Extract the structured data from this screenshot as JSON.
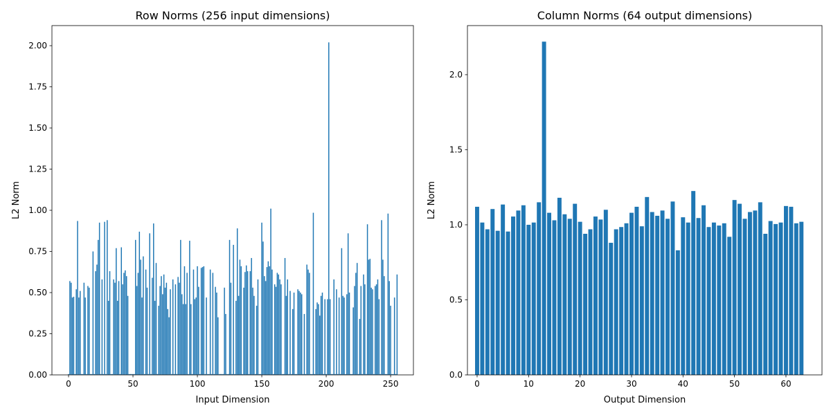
{
  "chart_data": [
    {
      "type": "bar",
      "title": "Row Norms (256 input dimensions)",
      "xlabel": "Input Dimension",
      "ylabel": "L2 Norm",
      "color": "#1f77b4",
      "x": [
        0,
        1,
        2,
        3,
        4,
        5,
        6,
        7,
        8,
        9,
        10,
        11,
        12,
        13,
        14,
        15,
        16,
        17,
        18,
        19,
        20,
        21,
        22,
        23,
        24,
        25,
        26,
        27,
        28,
        29,
        30,
        31,
        32,
        33,
        34,
        35,
        36,
        37,
        38,
        39,
        40,
        41,
        42,
        43,
        44,
        45,
        46,
        47,
        48,
        49,
        50,
        51,
        52,
        53,
        54,
        55,
        56,
        57,
        58,
        59,
        60,
        61,
        62,
        63,
        64,
        65,
        66,
        67,
        68,
        69,
        70,
        71,
        72,
        73,
        74,
        75,
        76,
        77,
        78,
        79,
        80,
        81,
        82,
        83,
        84,
        85,
        86,
        87,
        88,
        89,
        90,
        91,
        92,
        93,
        94,
        95,
        96,
        97,
        98,
        99,
        100,
        101,
        102,
        103,
        104,
        105,
        106,
        107,
        108,
        109,
        110,
        111,
        112,
        113,
        114,
        115,
        116,
        117,
        118,
        119,
        120,
        121,
        122,
        123,
        124,
        125,
        126,
        127,
        128,
        129,
        130,
        131,
        132,
        133,
        134,
        135,
        136,
        137,
        138,
        139,
        140,
        141,
        142,
        143,
        144,
        145,
        146,
        147,
        148,
        149,
        150,
        151,
        152,
        153,
        154,
        155,
        156,
        157,
        158,
        159,
        160,
        161,
        162,
        163,
        164,
        165,
        166,
        167,
        168,
        169,
        170,
        171,
        172,
        173,
        174,
        175,
        176,
        177,
        178,
        179,
        180,
        181,
        182,
        183,
        184,
        185,
        186,
        187,
        188,
        189,
        190,
        191,
        192,
        193,
        194,
        195,
        196,
        197,
        198,
        199,
        200,
        201,
        202,
        203,
        204,
        205,
        206,
        207,
        208,
        209,
        210,
        211,
        212,
        213,
        214,
        215,
        216,
        217,
        218,
        219,
        220,
        221,
        222,
        223,
        224,
        225,
        226,
        227,
        228,
        229,
        230,
        231,
        232,
        233,
        234,
        235,
        236,
        237,
        238,
        239,
        240,
        241,
        242,
        243,
        244,
        245,
        246,
        247,
        248,
        249,
        250,
        251,
        252,
        253,
        254,
        255
      ],
      "values": [
        0.005,
        0.57,
        0.56,
        0.47,
        0.475,
        0.005,
        0.52,
        0.935,
        0.47,
        0.51,
        0.005,
        0.005,
        0.56,
        0.47,
        0.005,
        0.54,
        0.53,
        0.005,
        0.005,
        0.75,
        0.005,
        0.63,
        0.67,
        0.82,
        0.925,
        0.005,
        0.58,
        0.005,
        0.93,
        0.005,
        0.94,
        0.45,
        0.63,
        0.005,
        0.005,
        0.58,
        0.56,
        0.77,
        0.45,
        0.57,
        0.005,
        0.775,
        0.55,
        0.62,
        0.635,
        0.6,
        0.48,
        0.005,
        0.005,
        0.005,
        0.005,
        0.005,
        0.82,
        0.54,
        0.62,
        0.87,
        0.7,
        0.47,
        0.72,
        0.005,
        0.64,
        0.53,
        0.005,
        0.86,
        0.005,
        0.59,
        0.92,
        0.45,
        0.68,
        0.005,
        0.42,
        0.54,
        0.6,
        0.49,
        0.61,
        0.53,
        0.56,
        0.4,
        0.35,
        0.52,
        0.005,
        0.58,
        0.005,
        0.55,
        0.005,
        0.595,
        0.56,
        0.82,
        0.49,
        0.43,
        0.66,
        0.43,
        0.62,
        0.005,
        0.815,
        0.43,
        0.005,
        0.64,
        0.46,
        0.47,
        0.66,
        0.535,
        0.005,
        0.65,
        0.655,
        0.66,
        0.005,
        0.47,
        0.005,
        0.005,
        0.64,
        0.005,
        0.62,
        0.005,
        0.535,
        0.5,
        0.35,
        0.005,
        0.005,
        0.005,
        0.005,
        0.53,
        0.37,
        0.005,
        0.005,
        0.82,
        0.56,
        0.005,
        0.79,
        0.005,
        0.45,
        0.89,
        0.48,
        0.7,
        0.66,
        0.005,
        0.53,
        0.625,
        0.665,
        0.63,
        0.005,
        0.63,
        0.71,
        0.53,
        0.48,
        0.005,
        0.42,
        0.58,
        0.005,
        0.005,
        0.925,
        0.81,
        0.6,
        0.57,
        0.655,
        0.69,
        0.66,
        1.01,
        0.64,
        0.005,
        0.55,
        0.535,
        0.62,
        0.61,
        0.58,
        0.55,
        0.005,
        0.005,
        0.71,
        0.48,
        0.58,
        0.005,
        0.51,
        0.005,
        0.4,
        0.5,
        0.005,
        0.005,
        0.52,
        0.51,
        0.5,
        0.49,
        0.005,
        0.37,
        0.005,
        0.67,
        0.64,
        0.62,
        0.005,
        0.005,
        0.985,
        0.005,
        0.4,
        0.44,
        0.43,
        0.36,
        0.48,
        0.5,
        0.005,
        0.46,
        0.005,
        0.46,
        2.02,
        0.46,
        0.005,
        0.005,
        0.58,
        0.005,
        0.52,
        0.005,
        0.47,
        0.005,
        0.77,
        0.48,
        0.47,
        0.005,
        0.49,
        0.86,
        0.5,
        0.005,
        0.005,
        0.41,
        0.54,
        0.62,
        0.68,
        0.005,
        0.34,
        0.54,
        0.005,
        0.61,
        0.55,
        0.005,
        0.915,
        0.7,
        0.705,
        0.53,
        0.52,
        0.005,
        0.54,
        0.55,
        0.58,
        0.46,
        0.005,
        0.94,
        0.7,
        0.6,
        0.005,
        0.005,
        0.98,
        0.57,
        0.42,
        0.005,
        0.005,
        0.47,
        0.005,
        0.61
      ],
      "xlim": [
        -12.9,
        267.7
      ],
      "xticks": [
        0,
        50,
        100,
        150,
        200,
        250
      ],
      "ylim": [
        0,
        2.122
      ],
      "yticks": [
        {
          "value": 0,
          "label": "0.00"
        },
        0.25,
        {
          "value": 0.5,
          "label": "0.50"
        },
        0.75,
        {
          "value": 1,
          "label": "1.00"
        },
        1.25,
        {
          "value": 1.5,
          "label": "1.50"
        },
        1.75,
        {
          "value": 2,
          "label": "2.00"
        }
      ]
    },
    {
      "type": "bar",
      "title": "Column Norms (64 output dimensions)",
      "xlabel": "Output Dimension",
      "ylabel": "L2 Norm",
      "color": "#1f77b4",
      "x": [
        0,
        1,
        2,
        3,
        4,
        5,
        6,
        7,
        8,
        9,
        10,
        11,
        12,
        13,
        14,
        15,
        16,
        17,
        18,
        19,
        20,
        21,
        22,
        23,
        24,
        25,
        26,
        27,
        28,
        29,
        30,
        31,
        32,
        33,
        34,
        35,
        36,
        37,
        38,
        39,
        40,
        41,
        42,
        43,
        44,
        45,
        46,
        47,
        48,
        49,
        50,
        51,
        52,
        53,
        54,
        55,
        56,
        57,
        58,
        59,
        60,
        61,
        62,
        63
      ],
      "values": [
        1.12,
        1.015,
        0.97,
        1.105,
        0.96,
        1.135,
        0.955,
        1.055,
        1.095,
        1.13,
        1.0,
        1.015,
        1.15,
        2.22,
        1.08,
        1.03,
        1.18,
        1.07,
        1.04,
        1.14,
        1.02,
        0.94,
        0.97,
        1.055,
        1.035,
        1.1,
        0.88,
        0.97,
        0.985,
        1.01,
        1.08,
        1.12,
        0.99,
        1.185,
        1.085,
        1.06,
        1.095,
        1.04,
        1.155,
        0.83,
        1.05,
        1.015,
        1.225,
        1.045,
        1.13,
        0.985,
        1.015,
        0.995,
        1.01,
        0.92,
        1.165,
        1.14,
        1.04,
        1.085,
        1.095,
        1.15,
        0.94,
        1.025,
        1.005,
        1.015,
        1.125,
        1.12,
        1.01,
        1.02
      ],
      "xlim": [
        -1.88,
        67.0
      ],
      "xticks": [
        0,
        10,
        20,
        30,
        40,
        50,
        60
      ],
      "ylim": [
        0,
        2.327
      ],
      "yticks": [
        {
          "value": 0,
          "label": "0.0"
        },
        0.5,
        {
          "value": 1,
          "label": "1.0"
        },
        1.5,
        {
          "value": 2,
          "label": "2.0"
        }
      ]
    }
  ]
}
